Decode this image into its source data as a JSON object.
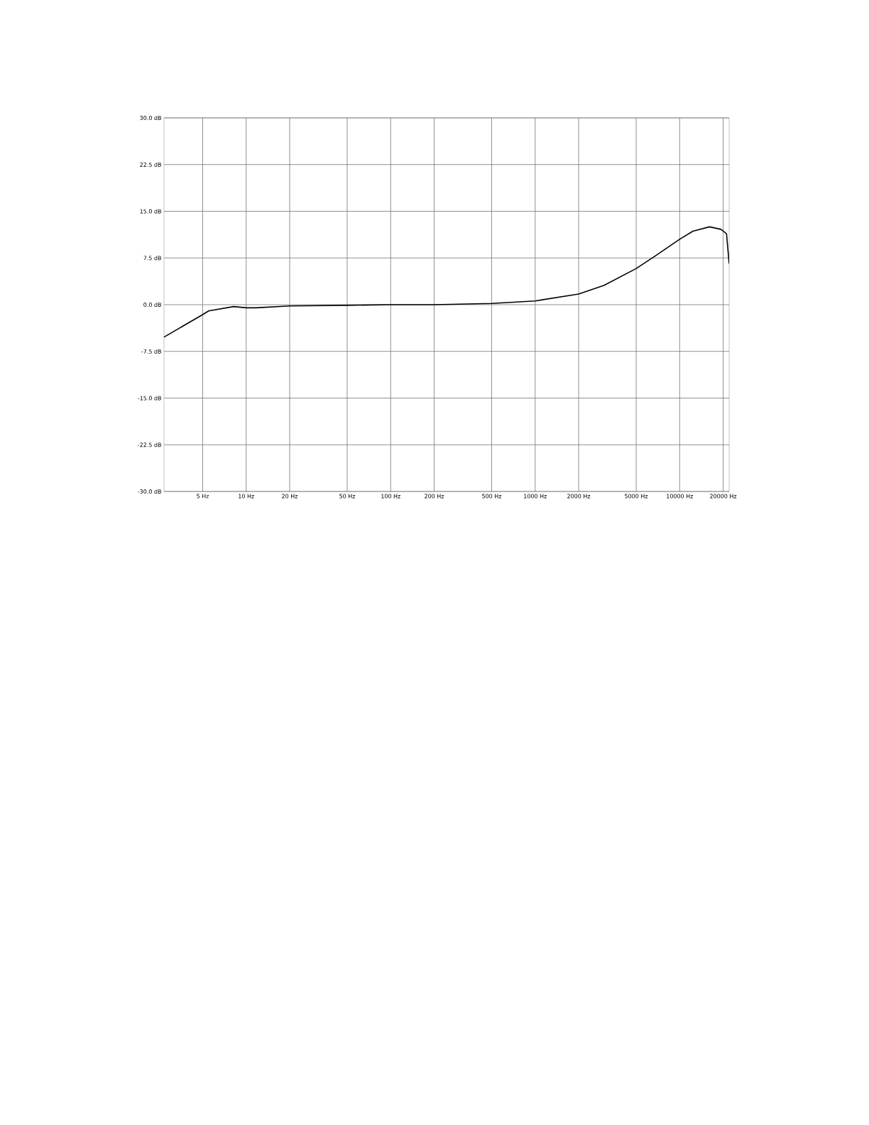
{
  "chart_data": {
    "type": "line",
    "log": "x",
    "grid": true,
    "xlim": [
      2.7,
      22000
    ],
    "ylim": [
      -30,
      30
    ],
    "xticks": [
      {
        "value": 5,
        "label": "5 Hz"
      },
      {
        "value": 10,
        "label": "10 Hz"
      },
      {
        "value": 20,
        "label": "20 Hz"
      },
      {
        "value": 50,
        "label": "50 Hz"
      },
      {
        "value": 100,
        "label": "100 Hz"
      },
      {
        "value": 200,
        "label": "200 Hz"
      },
      {
        "value": 500,
        "label": "500 Hz"
      },
      {
        "value": 1000,
        "label": "1000 Hz"
      },
      {
        "value": 2000,
        "label": "2000 Hz"
      },
      {
        "value": 5000,
        "label": "5000 Hz"
      },
      {
        "value": 10000,
        "label": "10000 Hz"
      },
      {
        "value": 20000,
        "label": "20000 Hz"
      }
    ],
    "yticks": [
      {
        "value": -30,
        "label": "-30.0 dB"
      },
      {
        "value": -22.5,
        "label": "-22.5 dB"
      },
      {
        "value": -15,
        "label": "-15.0 dB"
      },
      {
        "value": -7.5,
        "label": "-7.5 dB"
      },
      {
        "value": 0,
        "label": "0.0 dB"
      },
      {
        "value": 7.5,
        "label": "7.5 dB"
      },
      {
        "value": 15,
        "label": "15.0 dB"
      },
      {
        "value": 22.5,
        "label": "22.5 dB"
      },
      {
        "value": 30,
        "label": "30.0 dB"
      }
    ],
    "series": [
      {
        "color": "#000000",
        "x": [
          2.7,
          5,
          5.5,
          8.2,
          10,
          11.7,
          20,
          50,
          100,
          200,
          500,
          1000,
          2000,
          3000,
          5000,
          6750,
          10000,
          12350,
          16100,
          19300,
          21100,
          22000
        ],
        "values": [
          -5.2,
          -1.6,
          -1.0,
          -0.3,
          -0.5,
          -0.5,
          -0.2,
          -0.1,
          0,
          0,
          0.2,
          0.6,
          1.7,
          3.1,
          5.8,
          7.8,
          10.5,
          11.8,
          12.5,
          12.1,
          11.4,
          6.6
        ]
      }
    ]
  }
}
